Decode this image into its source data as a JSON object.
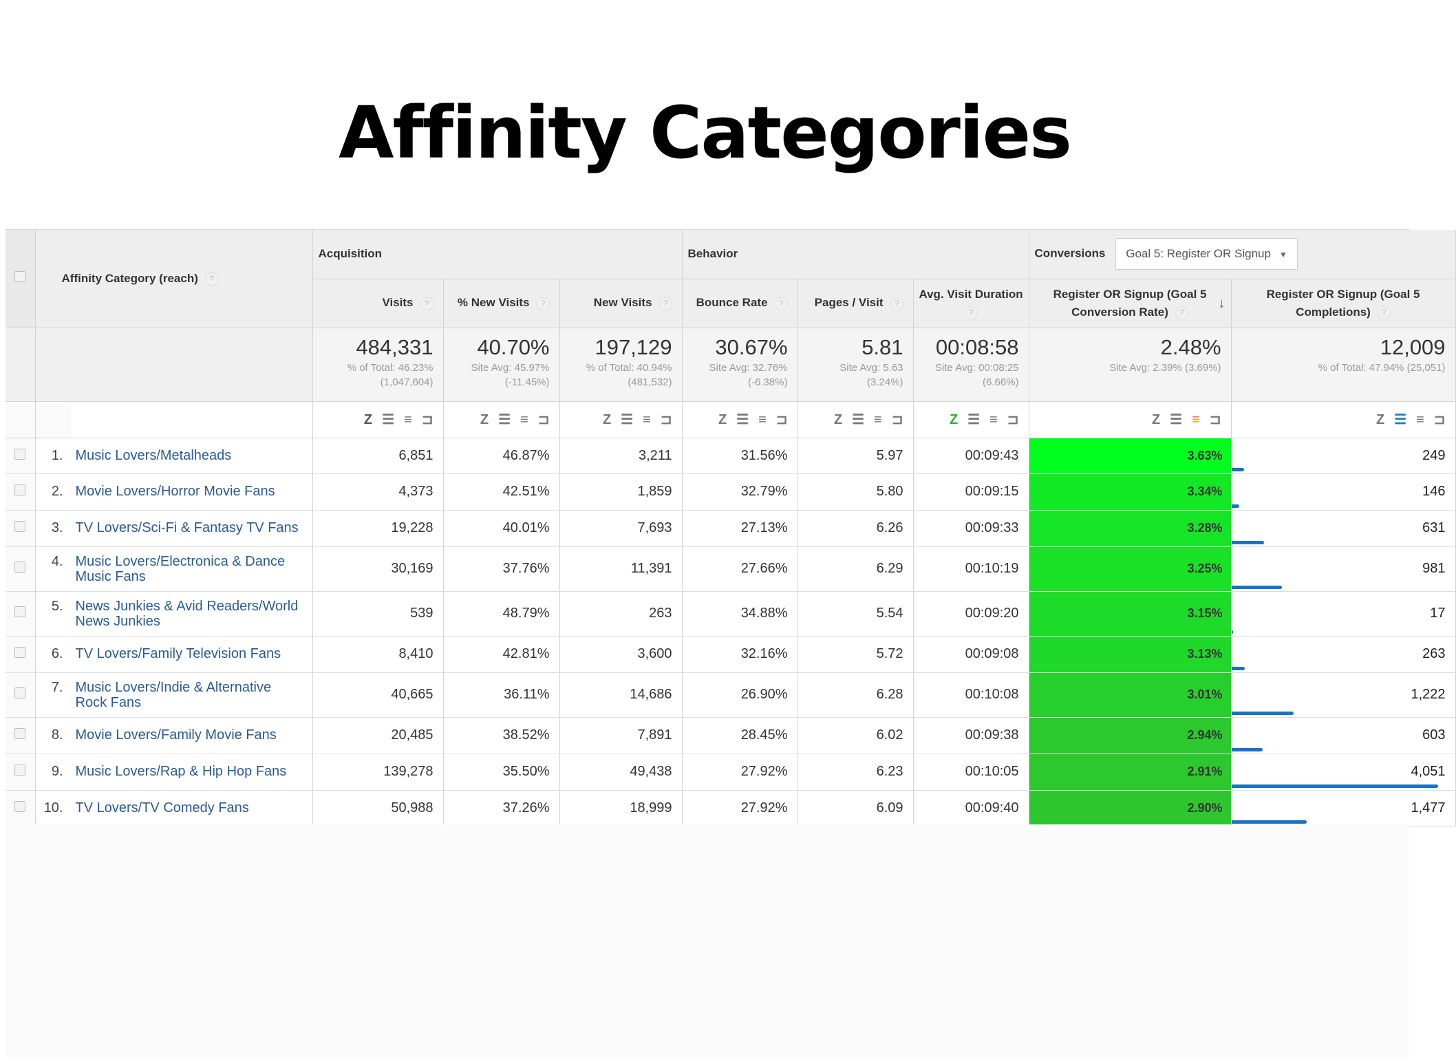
{
  "title": "Affinity Categories",
  "header": {
    "dimension_label": "Affinity Category (reach)",
    "groups": {
      "acquisition": "Acquisition",
      "behavior": "Behavior",
      "conversions": "Conversions",
      "goal_select": "Goal 5: Register OR Signup"
    },
    "columns": {
      "visits": "Visits",
      "pct_new_visits": "% New Visits",
      "new_visits": "New Visits",
      "bounce_rate": "Bounce Rate",
      "pages_visit": "Pages / Visit",
      "avg_duration": "Avg. Visit Duration",
      "conv_rate_l1": "Register OR Signup (Goal 5",
      "conv_rate_l2": "Conversion Rate)",
      "completions_l1": "Register OR Signup (Goal 5",
      "completions_l2": "Completions)"
    },
    "help_glyph": "?",
    "sort_glyph": "↓"
  },
  "summary": {
    "visits": {
      "value": "484,331",
      "l1": "% of Total: 46.23%",
      "l2": "(1,047,604)"
    },
    "pct_new_visits": {
      "value": "40.70%",
      "l1": "Site Avg: 45.97%",
      "l2": "(-11.45%)"
    },
    "new_visits": {
      "value": "197,129",
      "l1": "% of Total: 40.94%",
      "l2": "(481,532)"
    },
    "bounce_rate": {
      "value": "30.67%",
      "l1": "Site Avg: 32.76%",
      "l2": "(-6.38%)"
    },
    "pages_visit": {
      "value": "5.81",
      "l1": "Site Avg: 5.63",
      "l2": "(3.24%)"
    },
    "avg_duration": {
      "value": "00:08:58",
      "l1": "Site Avg: 00:08:25",
      "l2": "(6.66%)"
    },
    "conv_rate": {
      "value": "2.48%",
      "l1": "Site Avg: 2.39% (3.69%)"
    },
    "completions": {
      "value": "12,009",
      "l1": "% of Total: 47.94% (25,051)"
    }
  },
  "viz_icons": {
    "table": "Z",
    "performance": "☰",
    "comparison": "≡",
    "pivot": "⊐"
  },
  "colors": {
    "conv_top": "#00ff1e",
    "conv_bottom": "#2ec62e",
    "bar": "#1a72c6",
    "link": "#2a5a9a"
  },
  "completions_max": 4051,
  "rows": [
    {
      "idx": "1.",
      "name": "Music Lovers/Metalheads",
      "visits": "6,851",
      "pct_new": "46.87%",
      "new_visits": "3,211",
      "bounce": "31.56%",
      "pages": "5.97",
      "duration": "00:09:43",
      "conv": "3.63%",
      "conv_value": 3.63,
      "completions": "249",
      "completions_value": 249
    },
    {
      "idx": "2.",
      "name": "Movie Lovers/Horror Movie Fans",
      "visits": "4,373",
      "pct_new": "42.51%",
      "new_visits": "1,859",
      "bounce": "32.79%",
      "pages": "5.80",
      "duration": "00:09:15",
      "conv": "3.34%",
      "conv_value": 3.34,
      "completions": "146",
      "completions_value": 146
    },
    {
      "idx": "3.",
      "name": "TV Lovers/Sci-Fi & Fantasy TV Fans",
      "visits": "19,228",
      "pct_new": "40.01%",
      "new_visits": "7,693",
      "bounce": "27.13%",
      "pages": "6.26",
      "duration": "00:09:33",
      "conv": "3.28%",
      "conv_value": 3.28,
      "completions": "631",
      "completions_value": 631
    },
    {
      "idx": "4.",
      "name": "Music Lovers/Electronica & Dance Music Fans",
      "visits": "30,169",
      "pct_new": "37.76%",
      "new_visits": "11,391",
      "bounce": "27.66%",
      "pages": "6.29",
      "duration": "00:10:19",
      "conv": "3.25%",
      "conv_value": 3.25,
      "completions": "981",
      "completions_value": 981
    },
    {
      "idx": "5.",
      "name": "News Junkies & Avid Readers/World News Junkies",
      "visits": "539",
      "pct_new": "48.79%",
      "new_visits": "263",
      "bounce": "34.88%",
      "pages": "5.54",
      "duration": "00:09:20",
      "conv": "3.15%",
      "conv_value": 3.15,
      "completions": "17",
      "completions_value": 17
    },
    {
      "idx": "6.",
      "name": "TV Lovers/Family Television Fans",
      "visits": "8,410",
      "pct_new": "42.81%",
      "new_visits": "3,600",
      "bounce": "32.16%",
      "pages": "5.72",
      "duration": "00:09:08",
      "conv": "3.13%",
      "conv_value": 3.13,
      "completions": "263",
      "completions_value": 263
    },
    {
      "idx": "7.",
      "name": "Music Lovers/Indie & Alternative Rock Fans",
      "visits": "40,665",
      "pct_new": "36.11%",
      "new_visits": "14,686",
      "bounce": "26.90%",
      "pages": "6.28",
      "duration": "00:10:08",
      "conv": "3.01%",
      "conv_value": 3.01,
      "completions": "1,222",
      "completions_value": 1222
    },
    {
      "idx": "8.",
      "name": "Movie Lovers/Family Movie Fans",
      "visits": "20,485",
      "pct_new": "38.52%",
      "new_visits": "7,891",
      "bounce": "28.45%",
      "pages": "6.02",
      "duration": "00:09:38",
      "conv": "2.94%",
      "conv_value": 2.94,
      "completions": "603",
      "completions_value": 603
    },
    {
      "idx": "9.",
      "name": "Music Lovers/Rap & Hip Hop Fans",
      "visits": "139,278",
      "pct_new": "35.50%",
      "new_visits": "49,438",
      "bounce": "27.92%",
      "pages": "6.23",
      "duration": "00:10:05",
      "conv": "2.91%",
      "conv_value": 2.91,
      "completions": "4,051",
      "completions_value": 4051
    },
    {
      "idx": "10.",
      "name": "TV Lovers/TV Comedy Fans",
      "visits": "50,988",
      "pct_new": "37.26%",
      "new_visits": "18,999",
      "bounce": "27.92%",
      "pages": "6.09",
      "duration": "00:09:40",
      "conv": "2.90%",
      "conv_value": 2.9,
      "completions": "1,477",
      "completions_value": 1477
    }
  ]
}
